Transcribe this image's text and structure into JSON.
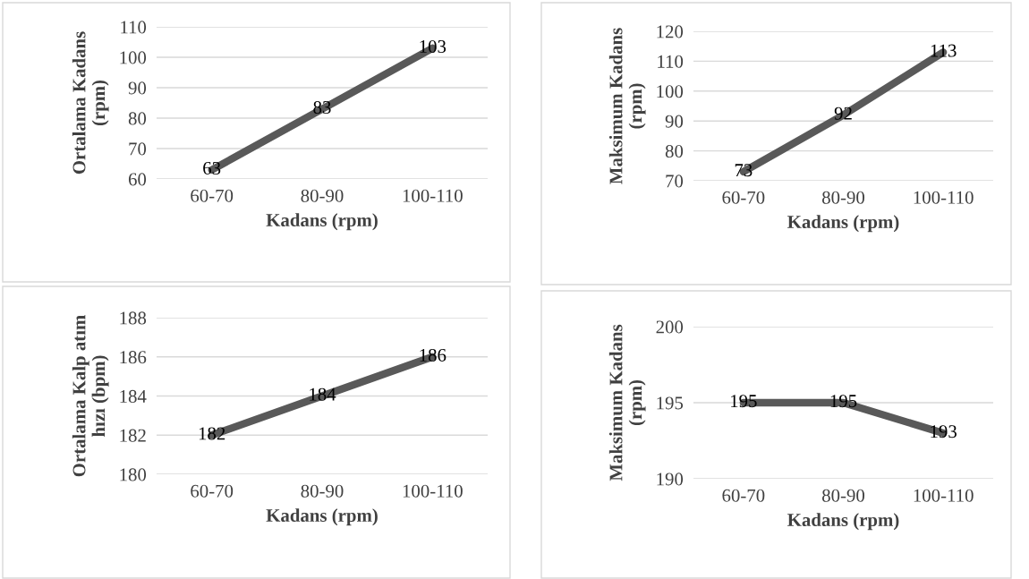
{
  "chart_data": [
    {
      "type": "line",
      "categories": [
        "60-70",
        "80-90",
        "100-110"
      ],
      "xlabel": "Kadans (rpm)",
      "ylabel": "Ortalama Kadans\n(rpm)",
      "ylim": [
        60,
        110
      ],
      "yticks": [
        60,
        70,
        80,
        90,
        100,
        110
      ],
      "grid": "y",
      "data_labels": true,
      "marker": "none",
      "series": [
        {
          "color": "#595959",
          "values": [
            63,
            83,
            103
          ]
        }
      ]
    },
    {
      "type": "line",
      "categories": [
        "60-70",
        "80-90",
        "100-110"
      ],
      "xlabel": "Kadans (rpm)",
      "ylabel": "Maksimum Kadans\n(rpm)",
      "ylim": [
        70,
        120
      ],
      "yticks": [
        70,
        80,
        90,
        100,
        110,
        120
      ],
      "grid": "y",
      "data_labels": true,
      "marker": "none",
      "series": [
        {
          "color": "#595959",
          "values": [
            73,
            92,
            113
          ]
        }
      ]
    },
    {
      "type": "line",
      "categories": [
        "60-70",
        "80-90",
        "100-110"
      ],
      "xlabel": "Kadans (rpm)",
      "ylabel": "Ortalama Kalp atım\nhızı (bpm)",
      "ylim": [
        180,
        188
      ],
      "yticks": [
        180,
        182,
        184,
        186,
        188
      ],
      "grid": "y",
      "data_labels": true,
      "marker": "none",
      "series": [
        {
          "color": "#595959",
          "values": [
            182,
            184,
            186
          ]
        }
      ]
    },
    {
      "type": "line",
      "categories": [
        "60-70",
        "80-90",
        "100-110"
      ],
      "xlabel": "Kadans (rpm)",
      "ylabel": "Maksimum Kadans\n(rpm)",
      "ylim": [
        190,
        200
      ],
      "yticks": [
        190,
        195,
        200
      ],
      "grid": "y",
      "data_labels": true,
      "marker": "none",
      "series": [
        {
          "color": "#595959",
          "values": [
            195,
            195,
            193
          ]
        }
      ]
    }
  ]
}
